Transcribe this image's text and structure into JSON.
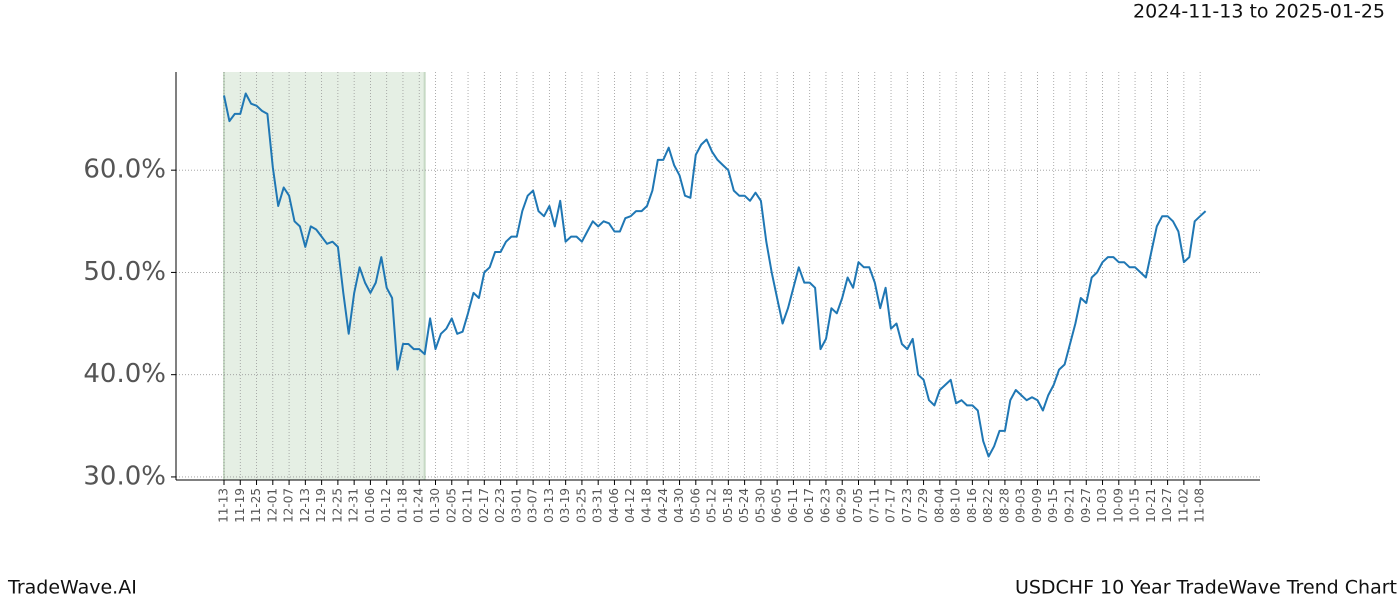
{
  "chart_data": {
    "type": "line",
    "title": "USDCHF 10 Year TradeWave Trend Chart",
    "date_range": "2024-11-13 to 2025-01-25",
    "brand": "TradeWave.AI",
    "categories": [
      "11-13",
      null,
      null,
      "11-19",
      null,
      null,
      "11-25",
      null,
      null,
      "12-01",
      null,
      null,
      "12-07",
      null,
      null,
      "12-13",
      null,
      null,
      "12-19",
      null,
      null,
      "12-25",
      null,
      null,
      "12-31",
      null,
      null,
      "01-06",
      null,
      null,
      "01-12",
      null,
      null,
      "01-18",
      null,
      null,
      "01-24",
      null,
      null,
      "01-30",
      null,
      null,
      "02-05",
      null,
      null,
      "02-11",
      null,
      null,
      "02-17",
      null,
      null,
      "02-23",
      null,
      null,
      "03-01",
      null,
      null,
      "03-07",
      null,
      null,
      "03-13",
      null,
      null,
      "03-19",
      null,
      null,
      "03-25",
      null,
      null,
      "03-31",
      null,
      null,
      "04-06",
      null,
      null,
      "04-12",
      null,
      null,
      "04-18",
      null,
      null,
      "04-24",
      null,
      null,
      "04-30",
      null,
      null,
      "05-06",
      null,
      null,
      "05-12",
      null,
      null,
      "05-18",
      null,
      null,
      "05-24",
      null,
      null,
      "05-30",
      null,
      null,
      "06-05",
      null,
      null,
      "06-11",
      null,
      null,
      "06-17",
      null,
      null,
      "06-23",
      null,
      null,
      "06-29",
      null,
      null,
      "07-05",
      null,
      null,
      "07-11",
      null,
      null,
      "07-17",
      null,
      null,
      "07-23",
      null,
      null,
      "07-29",
      null,
      null,
      "08-04",
      null,
      null,
      "08-10",
      null,
      null,
      "08-16",
      null,
      null,
      "08-22",
      null,
      null,
      "08-28",
      null,
      null,
      "09-03",
      null,
      null,
      "09-09",
      null,
      null,
      "09-15",
      null,
      null,
      "09-21",
      null,
      null,
      "09-27",
      null,
      null,
      "10-03",
      null,
      null,
      "10-09",
      null,
      null,
      "10-15",
      null,
      null,
      "10-21",
      null,
      null,
      "10-27",
      null,
      null,
      "11-02",
      null,
      null,
      "11-08",
      null
    ],
    "series": [
      {
        "color": "#1f77b4",
        "values": [
          67.3,
          64.8,
          65.5,
          65.5,
          67.5,
          66.5,
          66.3,
          65.8,
          65.5,
          60.3,
          56.5,
          58.3,
          57.5,
          55,
          54.5,
          52.5,
          54.5,
          54.2,
          53.5,
          52.8,
          53,
          52.5,
          48,
          44,
          48,
          50.5,
          49,
          48,
          49,
          51.5,
          48.5,
          47.5,
          40.5,
          43,
          43,
          42.5,
          42.5,
          42,
          45.5,
          42.5,
          44,
          44.5,
          45.5,
          44,
          44.2,
          46,
          48,
          47.5,
          50,
          50.5,
          52,
          52,
          53,
          53.5,
          53.5,
          56,
          57.5,
          58,
          56,
          55.5,
          56.5,
          54.5,
          57,
          53,
          53.5,
          53.5,
          53,
          54,
          55,
          54.5,
          55,
          54.8,
          54,
          54,
          55.3,
          55.5,
          56,
          56,
          56.5,
          58,
          61,
          61,
          62.2,
          60.5,
          59.5,
          57.5,
          57.3,
          61.5,
          62.5,
          63,
          61.8,
          61,
          60.5,
          60,
          58,
          57.5,
          57.5,
          57,
          57.8,
          57,
          53,
          50,
          47.5,
          45,
          46.5,
          48.5,
          50.5,
          49,
          49,
          48.5,
          42.5,
          43.5,
          46.5,
          46,
          47.5,
          49.5,
          48.5,
          51,
          50.5,
          50.5,
          49,
          46.5,
          48.5,
          44.5,
          45,
          43,
          42.5,
          43.5,
          40,
          39.5,
          37.5,
          37,
          38.5,
          39,
          39.5,
          37.2,
          37.5,
          37,
          37,
          36.5,
          33.5,
          32,
          33,
          34.5,
          34.5,
          37.5,
          38.5,
          38,
          37.5,
          37.8,
          37.5,
          36.5,
          38,
          39,
          40.5,
          41,
          43,
          45,
          47.5,
          47,
          49.5,
          50,
          51,
          51.5,
          51.5,
          51,
          51,
          50.5,
          50.5,
          50,
          49.5,
          52,
          54.5,
          55.5,
          55.5,
          55,
          54,
          51,
          51.5,
          55,
          55.5,
          56
        ]
      }
    ],
    "highlight": {
      "from": 0,
      "to": 37,
      "color": "#e5efe4"
    },
    "ylim": [
      29.7,
      69.6
    ],
    "yticks": [
      {
        "value": 30,
        "label": "30.0%"
      },
      {
        "value": 40,
        "label": "40.0%"
      },
      {
        "value": 50,
        "label": "50.0%"
      },
      {
        "value": 60,
        "label": "60.0%"
      }
    ],
    "grid": true
  }
}
